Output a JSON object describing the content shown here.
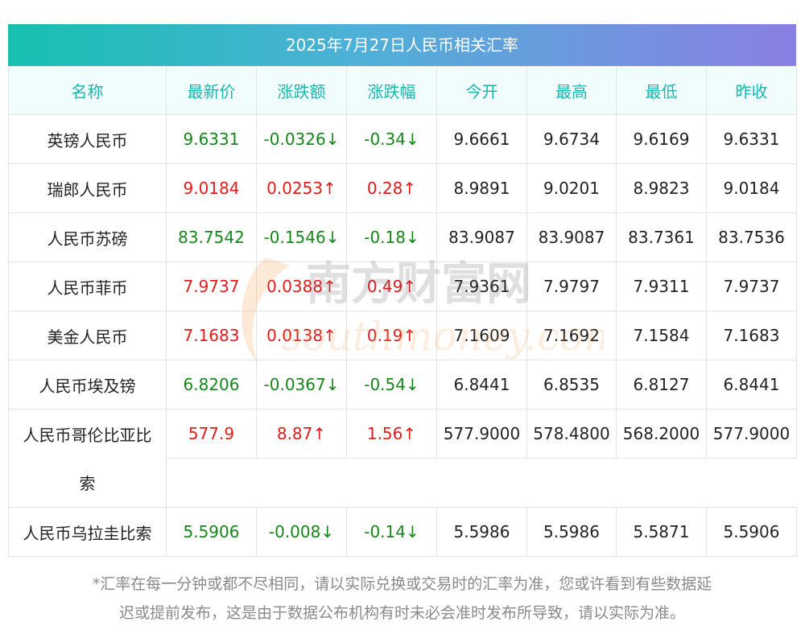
{
  "title": "2025年7月27日人民币相关汇率",
  "headers": [
    "名称",
    "最新价",
    "涨跌额",
    "涨跌幅",
    "今开",
    "最高",
    "最低",
    "昨收"
  ],
  "rows": [
    {
      "name": "英镑人民币",
      "last": "9.6331",
      "chg": "-0.0326↓",
      "pct": "-0.34↓",
      "open": "9.6661",
      "high": "9.6734",
      "low": "9.6169",
      "prev": "9.6331",
      "dir": "neg"
    },
    {
      "name": "瑞郎人民币",
      "last": "9.0184",
      "chg": "0.0253↑",
      "pct": "0.28↑",
      "open": "8.9891",
      "high": "9.0201",
      "low": "8.9823",
      "prev": "9.0184",
      "dir": "pos"
    },
    {
      "name": "人民币苏磅",
      "last": "83.7542",
      "chg": "-0.1546↓",
      "pct": "-0.18↓",
      "open": "83.9087",
      "high": "83.9087",
      "low": "83.7361",
      "prev": "83.7536",
      "dir": "neg"
    },
    {
      "name": "人民币菲币",
      "last": "7.9737",
      "chg": "0.0388↑",
      "pct": "0.49↑",
      "open": "7.9361",
      "high": "7.9797",
      "low": "7.9311",
      "prev": "7.9737",
      "dir": "pos"
    },
    {
      "name": "美金人民币",
      "last": "7.1683",
      "chg": "0.0138↑",
      "pct": "0.19↑",
      "open": "7.1609",
      "high": "7.1692",
      "low": "7.1584",
      "prev": "7.1683",
      "dir": "pos"
    },
    {
      "name": "人民币埃及镑",
      "last": "6.8206",
      "chg": "-0.0367↓",
      "pct": "-0.54↓",
      "open": "6.8441",
      "high": "6.8535",
      "low": "6.8127",
      "prev": "6.8441",
      "dir": "neg"
    },
    {
      "name": "人民币哥伦比亚比",
      "name_line2": "索",
      "last": "577.9",
      "chg": "8.87↑",
      "pct": "1.56↑",
      "open": "577.9000",
      "high": "578.4800",
      "low": "568.2000",
      "prev": "577.9000",
      "dir": "pos"
    },
    {
      "name": "人民币乌拉圭比索",
      "last": "5.5906",
      "chg": "-0.008↓",
      "pct": "-0.14↓",
      "open": "5.5986",
      "high": "5.5986",
      "low": "5.5871",
      "prev": "5.5906",
      "dir": "neg"
    }
  ],
  "colors": {
    "positive": "#e31b1b",
    "negative": "#18851b",
    "header_text": "#1ab6ad"
  },
  "watermark": {
    "cn": "南方财富网",
    "en": "southmoney.com"
  },
  "note_line1": "*汇率在每一分钟或都不尽相同，请以实际兑换或交易时的汇率为准，您或许看到有些数据延",
  "note_line2": "迟或提前发布，这是由于数据公布机构有时未必会准时发布所导致，请以实际为准。"
}
